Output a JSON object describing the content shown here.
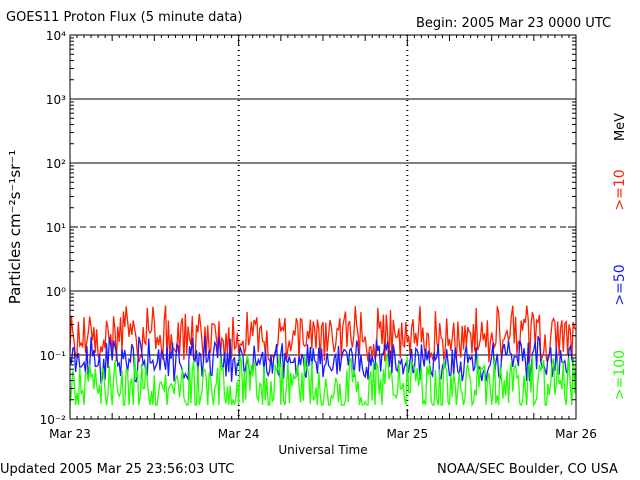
{
  "header": {
    "title": "GOES11 Proton Flux (5 minute data)",
    "begin": "Begin: 2005 Mar 23 0000 UTC"
  },
  "footer": {
    "updated": "Updated 2005 Mar 25 23:56:03 UTC",
    "source": "NOAA/SEC Boulder, CO USA"
  },
  "chart_data": {
    "type": "line",
    "title": "GOES11 Proton Flux (5 minute data)",
    "xlabel": "Universal Time",
    "ylabel": "Particles cm⁻²s⁻¹sr⁻¹",
    "yscale": "log",
    "ylim": [
      0.01,
      10000
    ],
    "x_ticks": [
      "Mar 23",
      "Mar 24",
      "Mar 25",
      "Mar 26"
    ],
    "y_ticks": [
      "10⁻²",
      "10⁻¹",
      "10⁰",
      "10¹",
      "10²",
      "10³",
      "10⁴"
    ],
    "energy_unit": "MeV",
    "grid": true,
    "reference_lines": [
      {
        "value": 1,
        "style": "solid"
      },
      {
        "value": 10,
        "style": "dashed"
      },
      {
        "value": 100,
        "style": "solid"
      },
      {
        "value": 1000,
        "style": "solid"
      },
      {
        "value": 0.1,
        "style": "solid"
      }
    ],
    "series": [
      {
        "name": ">=10",
        "color": "#ff2000",
        "typical_range": [
          0.1,
          0.4
        ],
        "peak": 0.6
      },
      {
        "name": ">=50",
        "color": "#1a1aff",
        "typical_range": [
          0.05,
          0.15
        ],
        "peak": 0.2
      },
      {
        "name": ">=100",
        "color": "#22ff00",
        "typical_range": [
          0.015,
          0.08
        ],
        "peak": 0.1
      }
    ]
  }
}
